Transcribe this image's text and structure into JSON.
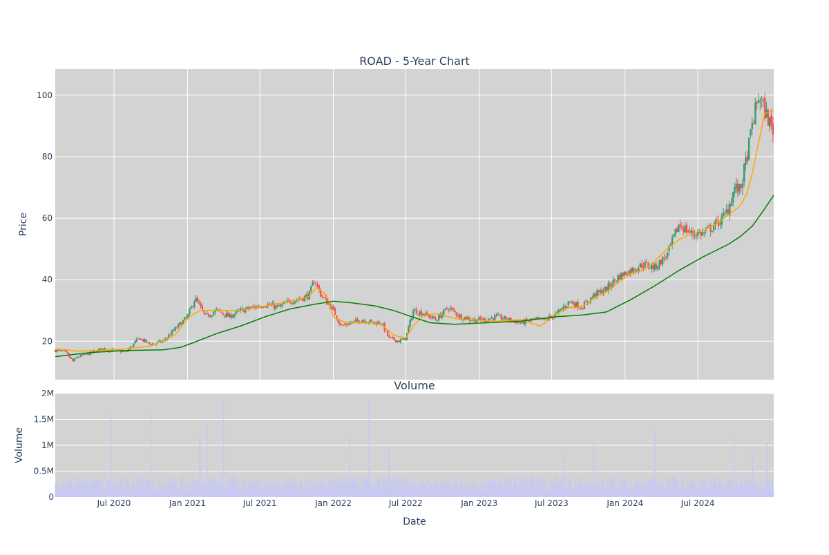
{
  "chart_data": {
    "type": "candlestick",
    "title": "ROAD - 5-Year Chart",
    "subtitle": "Volume",
    "xlabel": "Date",
    "price_panel": {
      "ylabel": "Price",
      "ylim": [
        7.5,
        108.5
      ],
      "yticks": [
        20,
        40,
        60,
        80,
        100
      ],
      "ytick_labels": [
        "20",
        "40",
        "60",
        "80",
        "100"
      ],
      "grid": true
    },
    "volume_panel": {
      "ylabel": "Volume",
      "ylim": [
        0,
        2000000
      ],
      "yticks": [
        0,
        500000,
        1000000,
        1500000,
        2000000
      ],
      "ytick_labels": [
        "0",
        "0.5M",
        "1M",
        "1.5M",
        "2M"
      ],
      "grid": true
    },
    "x_range": [
      "2020-02-05",
      "2025-01-07"
    ],
    "xticks": [
      "2020-07-01",
      "2021-01-01",
      "2021-07-01",
      "2022-01-01",
      "2022-07-01",
      "2023-01-01",
      "2023-07-01",
      "2024-01-01",
      "2024-07-01"
    ],
    "xtick_labels": [
      "Jul 2020",
      "Jan 2021",
      "Jul 2021",
      "Jan 2022",
      "Jul 2022",
      "Jan 2023",
      "Jul 2023",
      "Jan 2024",
      "Jul 2024"
    ],
    "x_gridlines": [
      "2020-07-01",
      "2021-01-01",
      "2021-07-01",
      "2022-01-01",
      "2022-07-01",
      "2023-01-01",
      "2023-07-01",
      "2024-01-01",
      "2024-07-01"
    ],
    "close_series": {
      "dates": [
        "2020-02-05",
        "2020-03-01",
        "2020-03-20",
        "2020-04-01",
        "2020-05-01",
        "2020-06-01",
        "2020-07-01",
        "2020-08-01",
        "2020-09-01",
        "2020-10-01",
        "2020-11-01",
        "2020-12-01",
        "2021-01-01",
        "2021-01-20",
        "2021-02-15",
        "2021-03-15",
        "2021-04-15",
        "2021-05-15",
        "2021-06-15",
        "2021-07-15",
        "2021-08-15",
        "2021-09-15",
        "2021-10-15",
        "2021-11-01",
        "2021-11-15",
        "2021-12-01",
        "2022-01-01",
        "2022-01-20",
        "2022-02-15",
        "2022-03-15",
        "2022-04-15",
        "2022-05-01",
        "2022-05-20",
        "2022-06-15",
        "2022-07-01",
        "2022-07-20",
        "2022-08-15",
        "2022-09-15",
        "2022-10-15",
        "2022-11-15",
        "2022-12-15",
        "2023-01-15",
        "2023-02-15",
        "2023-03-15",
        "2023-04-15",
        "2023-05-15",
        "2023-06-15",
        "2023-07-15",
        "2023-08-15",
        "2023-09-15",
        "2023-10-15",
        "2023-11-15",
        "2023-12-15",
        "2024-01-15",
        "2024-02-15",
        "2024-03-15",
        "2024-04-15",
        "2024-05-15",
        "2024-06-15",
        "2024-07-15",
        "2024-08-15",
        "2024-09-01",
        "2024-09-15",
        "2024-10-01",
        "2024-10-15",
        "2024-11-01",
        "2024-11-15",
        "2024-12-01",
        "2024-12-15",
        "2025-01-07"
      ],
      "values": [
        17,
        16.5,
        13.5,
        15,
        16,
        17.5,
        17,
        16.5,
        21,
        19,
        20,
        24,
        28,
        34,
        28,
        30,
        28,
        30,
        31,
        32,
        31,
        33,
        34,
        35,
        40,
        35,
        30,
        25,
        26,
        27,
        26,
        26,
        21,
        20,
        21,
        30,
        29,
        27,
        31,
        28,
        27,
        27,
        28,
        27,
        26,
        27,
        27,
        29,
        33,
        31,
        35,
        37,
        41,
        43,
        45,
        44,
        48,
        58,
        55,
        55,
        58,
        60,
        63,
        70,
        69,
        80,
        91,
        100,
        95,
        88
      ]
    },
    "sma_short": {
      "name": "",
      "color": "#ffa500",
      "dates": [
        "2020-02-05",
        "2020-04-01",
        "2020-06-01",
        "2020-08-01",
        "2020-10-01",
        "2020-12-01",
        "2021-01-01",
        "2021-02-01",
        "2021-03-15",
        "2021-05-15",
        "2021-07-15",
        "2021-09-15",
        "2021-11-01",
        "2021-11-20",
        "2021-12-15",
        "2022-01-01",
        "2022-02-01",
        "2022-03-15",
        "2022-05-01",
        "2022-06-01",
        "2022-07-01",
        "2022-07-20",
        "2022-08-15",
        "2022-09-15",
        "2022-10-15",
        "2022-11-15",
        "2022-12-15",
        "2023-02-15",
        "2023-04-15",
        "2023-06-01",
        "2023-06-15",
        "2023-07-15",
        "2023-08-15",
        "2023-09-15",
        "2023-10-15",
        "2023-11-15",
        "2023-12-15",
        "2024-01-15",
        "2024-02-15",
        "2024-03-15",
        "2024-04-15",
        "2024-05-15",
        "2024-06-15",
        "2024-07-15",
        "2024-08-15",
        "2024-09-15",
        "2024-10-15",
        "2024-11-01",
        "2024-11-15",
        "2024-12-01",
        "2024-12-15",
        "2025-01-07"
      ],
      "values": [
        17.5,
        16.8,
        17,
        17.5,
        18.5,
        22,
        27.5,
        30,
        30,
        30,
        31.5,
        33,
        34.5,
        37.5,
        35,
        28,
        26,
        26,
        25.5,
        22,
        21,
        25,
        28.5,
        29,
        28,
        27,
        27,
        26.5,
        27,
        25,
        26,
        29,
        31,
        31,
        34,
        36,
        39,
        42,
        43,
        46,
        50,
        53,
        55,
        56,
        58,
        61,
        64,
        68,
        75,
        85,
        94,
        95
      ]
    },
    "sma_long": {
      "name": "",
      "color": "#008000",
      "dates": [
        "2020-02-05",
        "2020-05-01",
        "2020-08-01",
        "2020-11-01",
        "2020-12-15",
        "2021-01-15",
        "2021-03-15",
        "2021-05-15",
        "2021-07-15",
        "2021-09-15",
        "2021-11-15",
        "2022-01-01",
        "2022-02-15",
        "2022-04-15",
        "2022-06-01",
        "2022-07-15",
        "2022-09-01",
        "2022-11-01",
        "2023-01-15",
        "2023-04-15",
        "2023-07-15",
        "2023-09-15",
        "2023-11-15",
        "2024-01-15",
        "2024-03-15",
        "2024-05-15",
        "2024-07-15",
        "2024-09-15",
        "2024-10-15",
        "2024-11-15",
        "2024-12-15",
        "2025-01-07"
      ],
      "values": [
        15,
        16.3,
        17,
        17.2,
        18,
        19.5,
        22.5,
        25,
        28,
        30.5,
        32,
        33,
        32.5,
        31.5,
        30,
        28,
        26,
        25.5,
        26,
        26.5,
        28,
        28.5,
        29.5,
        33.5,
        38,
        43,
        47.5,
        51.5,
        54,
        57.5,
        63,
        67.5
      ]
    },
    "volume_series": {
      "bar_color": "#c8c9f0",
      "peaks": [
        {
          "date": "2020-06-24",
          "value": 1650000
        },
        {
          "date": "2020-10-01",
          "value": 1620000
        },
        {
          "date": "2021-02-01",
          "value": 1100000
        },
        {
          "date": "2021-02-20",
          "value": 1480000
        },
        {
          "date": "2021-04-01",
          "value": 1950000
        },
        {
          "date": "2022-02-10",
          "value": 1200000
        },
        {
          "date": "2022-04-01",
          "value": 1950000
        },
        {
          "date": "2022-05-20",
          "value": 950000
        },
        {
          "date": "2023-08-01",
          "value": 850000
        },
        {
          "date": "2023-10-15",
          "value": 1050000
        },
        {
          "date": "2024-03-15",
          "value": 1300000
        },
        {
          "date": "2024-10-01",
          "value": 1180000
        },
        {
          "date": "2024-11-15",
          "value": 880000
        },
        {
          "date": "2024-12-20",
          "value": 1050000
        }
      ],
      "base_value": 250000
    },
    "colors": {
      "plot_bg": "#d3d3d3",
      "grid": "#ffffff",
      "up": "#26a69a",
      "up_draw": "#3d9970",
      "down": "#ef5350",
      "text": "#2a3f5f"
    }
  }
}
